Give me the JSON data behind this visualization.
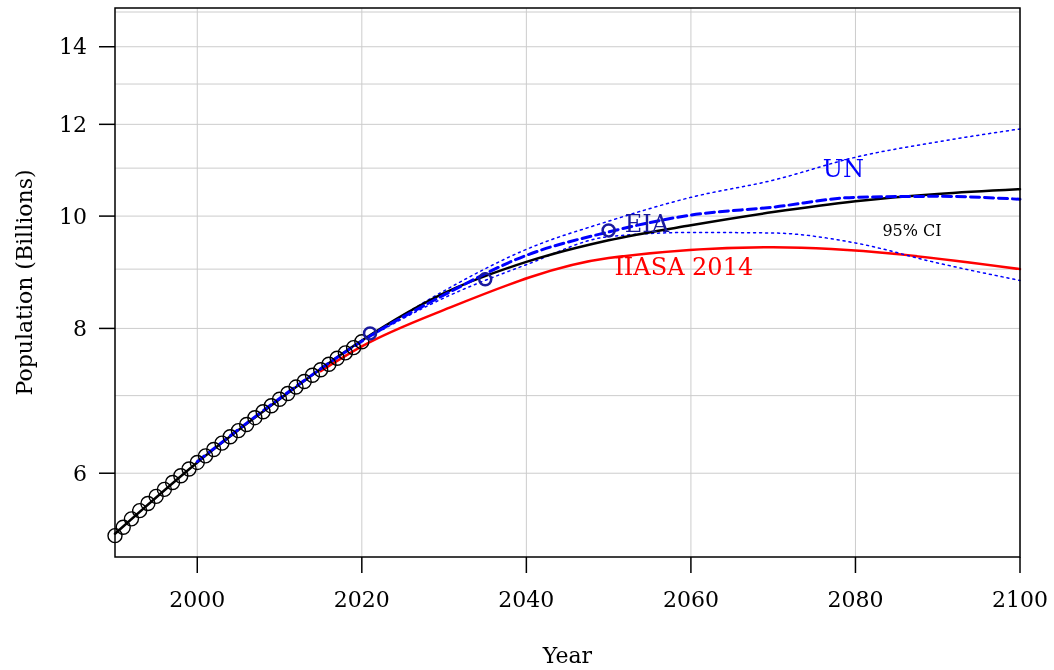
{
  "chart_data": {
    "type": "line",
    "xlabel": "Year",
    "ylabel": "Population (Billions)",
    "log": "y",
    "grid": true,
    "xlim": [
      1990,
      2100
    ],
    "xticks": [
      2000,
      2020,
      2040,
      2060,
      2080,
      2100
    ],
    "ylim": [
      5.08,
      15.12
    ],
    "yticks": [
      6,
      {
        "value": 7,
        "label": null
      },
      8,
      {
        "value": 9,
        "label": null
      },
      10,
      {
        "value": 11,
        "label": null
      },
      12,
      {
        "value": 13,
        "label": null
      },
      14,
      {
        "value": 15,
        "label": null
      }
    ],
    "annotations": [
      "95% CI"
    ],
    "series": [
      {
        "color": "#ff0000",
        "name": "IIASA 2014",
        "line_style": "solid",
        "x": [
          2015,
          2020,
          2030,
          2050,
          2070,
          2100
        ],
        "values": [
          7.35,
          7.72,
          8.3,
          9.2,
          9.4,
          9.0
        ]
      },
      {
        "color": "#0000ff",
        "line_style": "dotted",
        "x": [
          2020,
          2030,
          2040,
          2050,
          2060,
          2070,
          2080,
          2090,
          2100
        ],
        "values": [
          7.8,
          8.62,
          9.36,
          9.9,
          10.38,
          10.74,
          11.24,
          11.59,
          11.89
        ]
      },
      {
        "color": "#0000ff",
        "line_style": "dotted",
        "x": [
          2020,
          2030,
          2040,
          2050,
          2060,
          2070,
          2080,
          2090,
          2100
        ],
        "values": [
          7.8,
          8.5,
          9.08,
          9.6,
          9.68,
          9.67,
          9.48,
          9.11,
          8.8
        ]
      },
      {
        "color": "#000000",
        "line_style": "solid",
        "x": [
          1990,
          2000,
          2010,
          2020,
          2030,
          2040,
          2050,
          2060,
          2070,
          2080,
          2090,
          2100
        ],
        "values": [
          5.32,
          6.13,
          6.95,
          7.81,
          8.58,
          9.13,
          9.53,
          9.82,
          10.08,
          10.3,
          10.45,
          10.55
        ]
      },
      {
        "color": "#0000ff",
        "name": "UN",
        "line_style": "dashed",
        "x": [
          2000,
          2010,
          2020,
          2030,
          2040,
          2050,
          2060,
          2070,
          2080,
          2090,
          2100
        ],
        "values": [
          6.14,
          6.96,
          7.8,
          8.55,
          9.25,
          9.69,
          10.02,
          10.18,
          10.38,
          10.4,
          10.34
        ]
      },
      {
        "type": "scatter",
        "color": "#000000",
        "marker": "circle",
        "x": [
          1990,
          1991,
          1992,
          1993,
          1994,
          1995,
          1996,
          1997,
          1998,
          1999,
          2000,
          2001,
          2002,
          2003,
          2004,
          2005,
          2006,
          2007,
          2008,
          2009,
          2010,
          2011,
          2012,
          2013,
          2014,
          2015,
          2016,
          2017,
          2018,
          2019,
          2020
        ],
        "values": [
          5.3,
          5.39,
          5.48,
          5.57,
          5.65,
          5.73,
          5.81,
          5.89,
          5.97,
          6.05,
          6.13,
          6.21,
          6.29,
          6.37,
          6.45,
          6.53,
          6.61,
          6.7,
          6.78,
          6.86,
          6.95,
          7.03,
          7.12,
          7.2,
          7.29,
          7.37,
          7.45,
          7.54,
          7.62,
          7.7,
          7.79
        ]
      },
      {
        "type": "scatter",
        "color": "#1a1a9e",
        "name": "EIA",
        "marker": "circle",
        "x": [
          2021,
          2035,
          2050
        ],
        "values": [
          7.92,
          8.82,
          9.72
        ]
      }
    ]
  }
}
